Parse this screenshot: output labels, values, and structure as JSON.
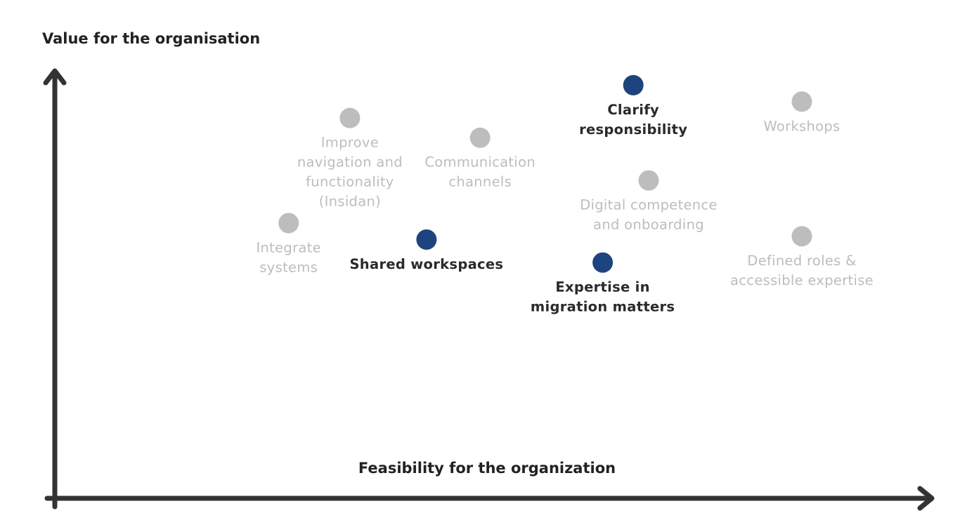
{
  "chart_data": {
    "type": "scatter",
    "title": "",
    "ylabel": "Value for the organisation",
    "xlabel": "Feasibility for the organization",
    "xlim": [
      0,
      100
    ],
    "ylim": [
      0,
      100
    ],
    "grid": false,
    "legend": "none",
    "colors": {
      "highlight_point": "#1c4480",
      "normal_point": "#bdbdbd",
      "highlight_text": "#2a2a2a",
      "normal_text": "#bdbdbd",
      "axis": "#333333"
    },
    "points": [
      {
        "label": "Clarify responsibility",
        "lines": [
          "Clarify",
          "responsibility"
        ],
        "x": 68,
        "y": 98,
        "highlight": true
      },
      {
        "label": "Workshops",
        "lines": [
          "Workshops"
        ],
        "x": 90,
        "y": 93,
        "highlight": false
      },
      {
        "label": "Improve navigation and functionality (Insidan)",
        "lines": [
          "Improve",
          "navigation and",
          "functionality",
          "(Insidan)"
        ],
        "x": 31,
        "y": 88,
        "highlight": false
      },
      {
        "label": "Communication channels",
        "lines": [
          "Communication",
          "channels"
        ],
        "x": 48,
        "y": 82,
        "highlight": false
      },
      {
        "label": "Digital competence and onboarding",
        "lines": [
          "Digital competence",
          "and onboarding"
        ],
        "x": 70,
        "y": 69,
        "highlight": false
      },
      {
        "label": "Integrate systems",
        "lines": [
          "Integrate",
          "systems"
        ],
        "x": 23,
        "y": 56,
        "highlight": false
      },
      {
        "label": "Shared workspaces",
        "lines": [
          "Shared workspaces"
        ],
        "x": 41,
        "y": 51,
        "highlight": true
      },
      {
        "label": "Defined roles & accessible expertise",
        "lines": [
          "Defined roles &",
          "accessible expertise"
        ],
        "x": 90,
        "y": 52,
        "highlight": false
      },
      {
        "label": "Expertise in migration matters",
        "lines": [
          "Expertise in",
          "migration matters"
        ],
        "x": 64,
        "y": 44,
        "highlight": true
      }
    ]
  }
}
